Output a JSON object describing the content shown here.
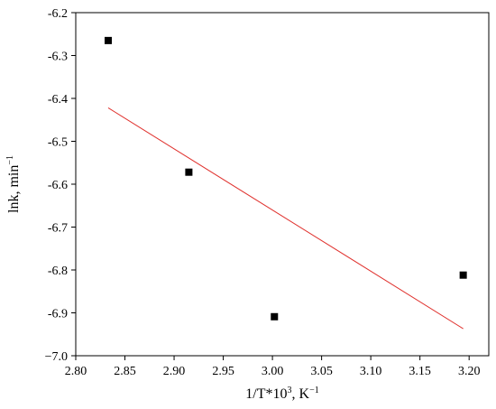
{
  "chart_data": {
    "type": "scatter",
    "title": "",
    "xlabel": {
      "main": "1/T*10",
      "superscript": "3",
      "suffix": ", K",
      "suffix_superscript": "−1"
    },
    "ylabel": {
      "main": "lnk, min",
      "superscript": "−1"
    },
    "xlim": [
      2.8,
      3.22
    ],
    "ylim": [
      -7.0,
      -6.2
    ],
    "x_ticks": [
      2.8,
      2.85,
      2.9,
      2.95,
      3.0,
      3.05,
      3.1,
      3.15,
      3.2
    ],
    "x_tick_labels": [
      "2.80",
      "2.85",
      "2.90",
      "2.95",
      "3.00",
      "3.05",
      "3.10",
      "3.15",
      "3.20"
    ],
    "y_ticks": [
      -7.0,
      -6.9,
      -6.8,
      -6.7,
      -6.6,
      -6.5,
      -6.4,
      -6.3,
      -6.2
    ],
    "y_tick_labels": [
      "−7.0",
      "-6.9",
      "-6.8",
      "-6.7",
      "-6.6",
      "-6.5",
      "-6.4",
      "-6.3",
      "-6.2"
    ],
    "grid": false,
    "series": [
      {
        "kind": "points",
        "marker": "square",
        "color": "#000000",
        "x": [
          2.833,
          2.915,
          3.002,
          3.194
        ],
        "y": [
          -6.265,
          -6.572,
          -6.909,
          -6.812
        ]
      },
      {
        "kind": "fit-line",
        "color": "#e0322e",
        "x": [
          2.833,
          3.194
        ],
        "y": [
          -6.422,
          -6.937
        ]
      }
    ]
  }
}
